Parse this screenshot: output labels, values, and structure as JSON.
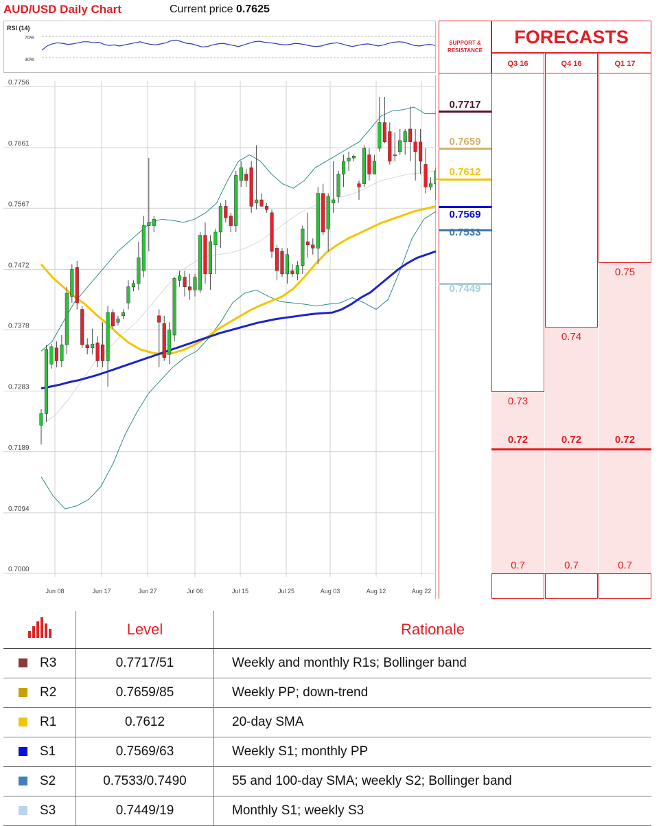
{
  "header": {
    "title": "AUD/USD Daily Chart",
    "price_prefix": "Current price",
    "price_value": "0.7625"
  },
  "rsi": {
    "label": "RSI (14)",
    "upper_label": "70%",
    "lower_label": "30%",
    "upper": 70,
    "lower": 30,
    "values": [
      44,
      52,
      56,
      58,
      57,
      55,
      56,
      58,
      60,
      60,
      58,
      59,
      55,
      53,
      54,
      52,
      54,
      56,
      58,
      60,
      57,
      55,
      54,
      56,
      58,
      62,
      63,
      60,
      57,
      56,
      53,
      50,
      51,
      54,
      56,
      57,
      55,
      53,
      51,
      54,
      57,
      60,
      61,
      59,
      58,
      57,
      55,
      54,
      55,
      57,
      56,
      54,
      52,
      51,
      52,
      55,
      57,
      58,
      56,
      53,
      51,
      53,
      55,
      56,
      54,
      52,
      54,
      57,
      59,
      60,
      59,
      56,
      53,
      52,
      54,
      55,
      53
    ]
  },
  "chart_data": {
    "type": "candlestick",
    "title": "AUD/USD Daily Chart",
    "y_ticks": [
      "0.7756",
      "0.7661",
      "0.7567",
      "0.7472",
      "0.7378",
      "0.7283",
      "0.7189",
      "0.7094",
      "0.7000"
    ],
    "ylim": [
      0.7,
      0.7756
    ],
    "x_ticks": [
      "Jun 08",
      "Jun 17",
      "Jun 27",
      "Jul 06",
      "Jul 15",
      "Jul 25",
      "Aug 03",
      "Aug 12",
      "Aug 22"
    ],
    "grid": true,
    "candles": [
      {
        "o": 0.723,
        "h": 0.7255,
        "l": 0.72,
        "c": 0.7248
      },
      {
        "o": 0.7248,
        "h": 0.7355,
        "l": 0.7235,
        "c": 0.7348
      },
      {
        "o": 0.7325,
        "h": 0.7356,
        "l": 0.7318,
        "c": 0.7352
      },
      {
        "o": 0.735,
        "h": 0.736,
        "l": 0.732,
        "c": 0.733
      },
      {
        "o": 0.733,
        "h": 0.737,
        "l": 0.732,
        "c": 0.7355
      },
      {
        "o": 0.7355,
        "h": 0.7445,
        "l": 0.734,
        "c": 0.7435
      },
      {
        "o": 0.743,
        "h": 0.748,
        "l": 0.742,
        "c": 0.7472
      },
      {
        "o": 0.7475,
        "h": 0.7485,
        "l": 0.741,
        "c": 0.742
      },
      {
        "o": 0.741,
        "h": 0.7415,
        "l": 0.735,
        "c": 0.7355
      },
      {
        "o": 0.7355,
        "h": 0.7365,
        "l": 0.734,
        "c": 0.735
      },
      {
        "o": 0.735,
        "h": 0.738,
        "l": 0.734,
        "c": 0.7356
      },
      {
        "o": 0.7358,
        "h": 0.7368,
        "l": 0.732,
        "c": 0.733
      },
      {
        "o": 0.7355,
        "h": 0.739,
        "l": 0.732,
        "c": 0.733
      },
      {
        "o": 0.733,
        "h": 0.7415,
        "l": 0.729,
        "c": 0.7405
      },
      {
        "o": 0.7405,
        "h": 0.741,
        "l": 0.738,
        "c": 0.7384
      },
      {
        "o": 0.739,
        "h": 0.74,
        "l": 0.7385,
        "c": 0.7395
      },
      {
        "o": 0.74,
        "h": 0.741,
        "l": 0.7395,
        "c": 0.7405
      },
      {
        "o": 0.742,
        "h": 0.7455,
        "l": 0.741,
        "c": 0.7445
      },
      {
        "o": 0.7445,
        "h": 0.7455,
        "l": 0.7438,
        "c": 0.745
      },
      {
        "o": 0.745,
        "h": 0.7515,
        "l": 0.744,
        "c": 0.749
      },
      {
        "o": 0.747,
        "h": 0.7555,
        "l": 0.746,
        "c": 0.754
      },
      {
        "o": 0.754,
        "h": 0.7645,
        "l": 0.75,
        "c": 0.7545
      },
      {
        "o": 0.754,
        "h": 0.7555,
        "l": 0.753,
        "c": 0.755
      },
      {
        "o": 0.74,
        "h": 0.741,
        "l": 0.732,
        "c": 0.739
      },
      {
        "o": 0.7388,
        "h": 0.74,
        "l": 0.733,
        "c": 0.7335
      },
      {
        "o": 0.734,
        "h": 0.739,
        "l": 0.7325,
        "c": 0.7378
      },
      {
        "o": 0.737,
        "h": 0.746,
        "l": 0.736,
        "c": 0.7458
      },
      {
        "o": 0.7455,
        "h": 0.747,
        "l": 0.7445,
        "c": 0.7462
      },
      {
        "o": 0.746,
        "h": 0.747,
        "l": 0.743,
        "c": 0.7445
      },
      {
        "o": 0.7445,
        "h": 0.7465,
        "l": 0.7425,
        "c": 0.744
      },
      {
        "o": 0.744,
        "h": 0.7465,
        "l": 0.743,
        "c": 0.746
      },
      {
        "o": 0.744,
        "h": 0.753,
        "l": 0.7435,
        "c": 0.7525
      },
      {
        "o": 0.7525,
        "h": 0.7545,
        "l": 0.745,
        "c": 0.7465
      },
      {
        "o": 0.7465,
        "h": 0.7525,
        "l": 0.744,
        "c": 0.7515
      },
      {
        "o": 0.751,
        "h": 0.7535,
        "l": 0.7465,
        "c": 0.753
      },
      {
        "o": 0.753,
        "h": 0.7575,
        "l": 0.7505,
        "c": 0.757
      },
      {
        "o": 0.757,
        "h": 0.758,
        "l": 0.7545,
        "c": 0.7552
      },
      {
        "o": 0.7555,
        "h": 0.756,
        "l": 0.753,
        "c": 0.754
      },
      {
        "o": 0.754,
        "h": 0.7625,
        "l": 0.753,
        "c": 0.7618
      },
      {
        "o": 0.761,
        "h": 0.764,
        "l": 0.76,
        "c": 0.763
      },
      {
        "o": 0.762,
        "h": 0.7628,
        "l": 0.76,
        "c": 0.761
      },
      {
        "o": 0.763,
        "h": 0.764,
        "l": 0.756,
        "c": 0.757
      },
      {
        "o": 0.7575,
        "h": 0.7665,
        "l": 0.7565,
        "c": 0.758
      },
      {
        "o": 0.758,
        "h": 0.759,
        "l": 0.757,
        "c": 0.757
      },
      {
        "o": 0.757,
        "h": 0.7575,
        "l": 0.756,
        "c": 0.7565
      },
      {
        "o": 0.756,
        "h": 0.7565,
        "l": 0.749,
        "c": 0.75
      },
      {
        "o": 0.7505,
        "h": 0.751,
        "l": 0.7455,
        "c": 0.747
      },
      {
        "o": 0.75,
        "h": 0.7505,
        "l": 0.746,
        "c": 0.7465
      },
      {
        "o": 0.7465,
        "h": 0.7505,
        "l": 0.745,
        "c": 0.7495
      },
      {
        "o": 0.747,
        "h": 0.748,
        "l": 0.746,
        "c": 0.7465
      },
      {
        "o": 0.7465,
        "h": 0.7485,
        "l": 0.7455,
        "c": 0.7478
      },
      {
        "o": 0.7478,
        "h": 0.754,
        "l": 0.7465,
        "c": 0.7535
      },
      {
        "o": 0.7515,
        "h": 0.756,
        "l": 0.749,
        "c": 0.751
      },
      {
        "o": 0.751,
        "h": 0.752,
        "l": 0.7495,
        "c": 0.7505
      },
      {
        "o": 0.7505,
        "h": 0.76,
        "l": 0.748,
        "c": 0.759
      },
      {
        "o": 0.759,
        "h": 0.7605,
        "l": 0.7525,
        "c": 0.753
      },
      {
        "o": 0.7535,
        "h": 0.759,
        "l": 0.75,
        "c": 0.7585
      },
      {
        "o": 0.7575,
        "h": 0.764,
        "l": 0.756,
        "c": 0.758
      },
      {
        "o": 0.7585,
        "h": 0.7625,
        "l": 0.7575,
        "c": 0.762
      },
      {
        "o": 0.762,
        "h": 0.765,
        "l": 0.76,
        "c": 0.764
      },
      {
        "o": 0.764,
        "h": 0.7655,
        "l": 0.7625,
        "c": 0.7645
      },
      {
        "o": 0.7645,
        "h": 0.765,
        "l": 0.764,
        "c": 0.7648
      },
      {
        "o": 0.7605,
        "h": 0.761,
        "l": 0.758,
        "c": 0.76
      },
      {
        "o": 0.7605,
        "h": 0.7665,
        "l": 0.76,
        "c": 0.766
      },
      {
        "o": 0.765,
        "h": 0.766,
        "l": 0.761,
        "c": 0.762
      },
      {
        "o": 0.762,
        "h": 0.765,
        "l": 0.762,
        "c": 0.764
      },
      {
        "o": 0.766,
        "h": 0.774,
        "l": 0.7655,
        "c": 0.77
      },
      {
        "o": 0.77,
        "h": 0.774,
        "l": 0.7668,
        "c": 0.767
      },
      {
        "o": 0.7686,
        "h": 0.77,
        "l": 0.7635,
        "c": 0.764
      },
      {
        "o": 0.765,
        "h": 0.7685,
        "l": 0.764,
        "c": 0.765
      },
      {
        "o": 0.7655,
        "h": 0.769,
        "l": 0.765,
        "c": 0.7672
      },
      {
        "o": 0.767,
        "h": 0.769,
        "l": 0.765,
        "c": 0.7686
      },
      {
        "o": 0.769,
        "h": 0.7725,
        "l": 0.764,
        "c": 0.767
      },
      {
        "o": 0.767,
        "h": 0.769,
        "l": 0.761,
        "c": 0.7655
      },
      {
        "o": 0.767,
        "h": 0.769,
        "l": 0.762,
        "c": 0.764
      },
      {
        "o": 0.7635,
        "h": 0.766,
        "l": 0.759,
        "c": 0.76
      },
      {
        "o": 0.76,
        "h": 0.7615,
        "l": 0.7595,
        "c": 0.7605
      },
      {
        "o": 0.7605,
        "h": 0.763,
        "l": 0.758,
        "c": 0.7625
      }
    ],
    "sma_200": [
      0.7287,
      0.729,
      0.7293,
      0.7297,
      0.73,
      0.7304,
      0.7308,
      0.7313,
      0.7318,
      0.7323,
      0.7328,
      0.7333,
      0.7338,
      0.7343,
      0.7348,
      0.7353,
      0.7358,
      0.7363,
      0.7368,
      0.7373,
      0.7377,
      0.7381,
      0.7385,
      0.7389,
      0.7392,
      0.7395,
      0.7397,
      0.7399,
      0.7401,
      0.7403,
      0.7404,
      0.7405,
      0.741,
      0.7418,
      0.7428,
      0.7436,
      0.7448,
      0.746,
      0.7472,
      0.7482,
      0.749,
      0.7495,
      0.75
    ],
    "sma_55": [
      0.748,
      0.746,
      0.7445,
      0.743,
      0.7418,
      0.7402,
      0.7388,
      0.7372,
      0.7358,
      0.7348,
      0.7343,
      0.734,
      0.7342,
      0.7347,
      0.7355,
      0.7365,
      0.7378,
      0.7388,
      0.7398,
      0.7408,
      0.7416,
      0.7423,
      0.743,
      0.7442,
      0.746,
      0.748,
      0.7498,
      0.751,
      0.752,
      0.7528,
      0.7536,
      0.7544,
      0.755,
      0.7556,
      0.7562,
      0.7566,
      0.757
    ],
    "bb_upper": [
      0.7345,
      0.736,
      0.739,
      0.742,
      0.744,
      0.746,
      0.748,
      0.75,
      0.7515,
      0.753,
      0.7545,
      0.755,
      0.7548,
      0.7545,
      0.755,
      0.756,
      0.7575,
      0.761,
      0.764,
      0.765,
      0.764,
      0.762,
      0.7605,
      0.7598,
      0.761,
      0.763,
      0.764,
      0.765,
      0.766,
      0.767,
      0.769,
      0.771,
      0.7718,
      0.772,
      0.7724,
      0.7714,
      0.7714
    ],
    "bb_lower": [
      0.715,
      0.712,
      0.71,
      0.7105,
      0.7115,
      0.7135,
      0.717,
      0.7215,
      0.725,
      0.728,
      0.73,
      0.732,
      0.7335,
      0.7345,
      0.7365,
      0.739,
      0.742,
      0.7435,
      0.744,
      0.743,
      0.7422,
      0.742,
      0.7418,
      0.7415,
      0.7418,
      0.742,
      0.7428,
      0.742,
      0.741,
      0.7425,
      0.747,
      0.752,
      0.755,
      0.7562
    ],
    "bb_middle": [
      0.723,
      0.7245,
      0.727,
      0.73,
      0.733,
      0.735,
      0.7372,
      0.739,
      0.7415,
      0.744,
      0.7465,
      0.748,
      0.7492,
      0.7495,
      0.7498,
      0.7505,
      0.7515,
      0.753,
      0.7545,
      0.756,
      0.757,
      0.7578,
      0.7584,
      0.759,
      0.76,
      0.761,
      0.7615,
      0.762,
      0.7622,
      0.7625
    ]
  },
  "sr": {
    "head_line1": "SUPPORT &",
    "head_line2": "RESISTANCE",
    "levels": [
      {
        "label": "0.7717",
        "value": 0.7717,
        "color": "#5a0f2e"
      },
      {
        "label": "0.7659",
        "value": 0.7659,
        "color": "#d4b06a"
      },
      {
        "label": "0.7612",
        "value": 0.7612,
        "color": "#f2c500"
      },
      {
        "label": "0.7569",
        "value": 0.7569,
        "color": "#0b0bd4"
      },
      {
        "label": "0.7533",
        "value": 0.7533,
        "color": "#3c78a8"
      },
      {
        "label": "0.7449",
        "value": 0.7449,
        "color": "#a8cfd8"
      }
    ]
  },
  "forecasts": {
    "title": "FORECASTS",
    "quarters": [
      {
        "label": "Q3 16",
        "top": "0.73",
        "mid": "0.72",
        "low": "0.7",
        "top_value": 0.73
      },
      {
        "label": "Q4 16",
        "top": "0.74",
        "mid": "0.72",
        "low": "0.7",
        "top_value": 0.74
      },
      {
        "label": "Q1 17",
        "top": "0.75",
        "mid": "0.72",
        "low": "0.7",
        "top_value": 0.75
      }
    ]
  },
  "table": {
    "icon": "bar-chart-icon",
    "col_level": "Level",
    "col_rationale": "Rationale",
    "rows": [
      {
        "key": "R3",
        "level": "0.7717/51",
        "rationale": "Weekly and monthly R1s; Bollinger band",
        "color": "#8b3a3a"
      },
      {
        "key": "R2",
        "level": "0.7659/85",
        "rationale": "Weekly PP; down-trend",
        "color": "#c9a000"
      },
      {
        "key": "R1",
        "level": "0.7612",
        "rationale": "20-day SMA",
        "color": "#f5c400"
      },
      {
        "key": "S1",
        "level": "0.7569/63",
        "rationale": "Weekly S1; monthly PP",
        "color": "#0a10d8"
      },
      {
        "key": "S2",
        "level": "0.7533/0.7490",
        "rationale": "55 and 100-day SMA; weekly S2; Bollinger band",
        "color": "#3f7ec0"
      },
      {
        "key": "S3",
        "level": "0.7449/19",
        "rationale": "Monthly S1; weekly S3",
        "color": "#b9d3ee"
      }
    ]
  }
}
